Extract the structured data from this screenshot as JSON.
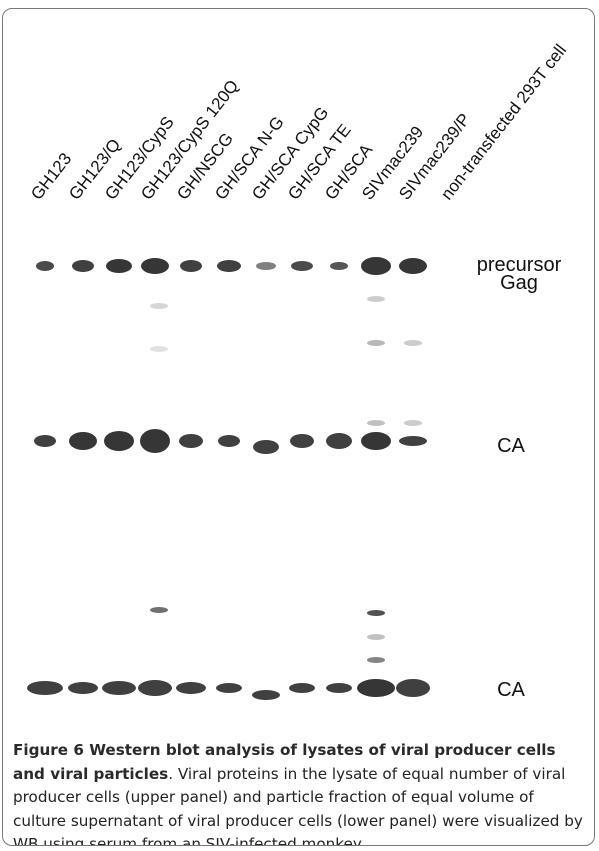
{
  "figure": {
    "lanes": [
      "GH123",
      "GH123/Q",
      "GH123/CypS",
      "GH123/CypS 120Q",
      "GH/NSCG",
      "GH/SCA N-G",
      "GH/SCA CypG",
      "GH/SCA TE",
      "GH/SCA",
      "SIVmac239",
      "SIVmac239/P",
      "non-transfected 293T cell"
    ],
    "band_labels": [
      "precursor",
      "Gag",
      "CA",
      "CA"
    ]
  },
  "caption": {
    "title": "Figure 6 Western blot analysis of lysates of viral producer cells and viral particles",
    "text": ". Viral proteins in the lysate of equal number of viral producer cells (upper panel) and particle fraction of equal volume of culture supernatant of viral producer cells (lower panel) were visualized by WB using serum from an SIV-infected monkey."
  }
}
